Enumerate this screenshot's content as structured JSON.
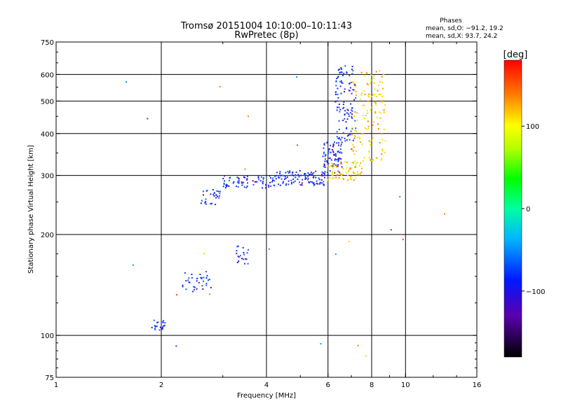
{
  "chart_data": {
    "type": "scatter",
    "title_line1": "Tromsø 20151004 10:10:00–10:11:43",
    "title_line2": "RwPretec (8p)",
    "xlabel": "Frequency [MHz]",
    "ylabel": "Stationary phase Virtual Height [km]",
    "x_scale": "log",
    "y_scale": "log",
    "xlim": [
      1,
      16
    ],
    "ylim": [
      75,
      750
    ],
    "x_ticks": [
      1,
      2,
      4,
      6,
      8,
      10,
      16
    ],
    "y_ticks": [
      75,
      100,
      200,
      300,
      400,
      500,
      600,
      750
    ],
    "x_grid": [
      2,
      4,
      6,
      8,
      10
    ],
    "y_grid": [
      100,
      200,
      300,
      400,
      500,
      600
    ],
    "grid": true,
    "legend": {
      "title": "Phases",
      "line1": "mean, sd,O: −91.2, 19.2",
      "line2": "mean, sd,X:  93.7, 24.2",
      "placement": "top-right"
    },
    "colorbar": {
      "label": "[deg]",
      "range": [
        -180,
        180
      ],
      "ticks": [
        100,
        0,
        -100
      ],
      "tick_labels": [
        "100",
        "0",
        "−100"
      ]
    },
    "colors": {
      "o_mode": "#1a3cff",
      "x_mode": "#f0e000"
    },
    "clusters": [
      {
        "mode": "O",
        "f": [
          1.88,
          2.05
        ],
        "h": [
          103,
          112
        ],
        "n": 22
      },
      {
        "mode": "O",
        "f": [
          2.3,
          2.8
        ],
        "h": [
          135,
          155
        ],
        "n": 35
      },
      {
        "mode": "O",
        "f": [
          3.2,
          3.55
        ],
        "h": [
          163,
          185
        ],
        "n": 20
      },
      {
        "mode": "O",
        "f": [
          2.6,
          2.95
        ],
        "h": [
          245,
          275
        ],
        "n": 30
      },
      {
        "mode": "O",
        "f": [
          3.0,
          4.2
        ],
        "h": [
          275,
          300
        ],
        "n": 70
      },
      {
        "mode": "O",
        "f": [
          4.2,
          6.0
        ],
        "h": [
          280,
          310
        ],
        "n": 110
      },
      {
        "mode": "O",
        "f": [
          5.8,
          6.6
        ],
        "h": [
          305,
          380
        ],
        "n": 80
      },
      {
        "mode": "O",
        "f": [
          6.3,
          7.2
        ],
        "h": [
          380,
          640
        ],
        "n": 110
      },
      {
        "mode": "X",
        "f": [
          6.0,
          7.5
        ],
        "h": [
          290,
          330
        ],
        "n": 70
      },
      {
        "mode": "X",
        "f": [
          7.0,
          8.8
        ],
        "h": [
          330,
          620
        ],
        "n": 130
      },
      {
        "mode": "scatter",
        "f": [
          1.5,
          13
        ],
        "h": [
          78,
          600
        ],
        "n": 25
      }
    ]
  }
}
